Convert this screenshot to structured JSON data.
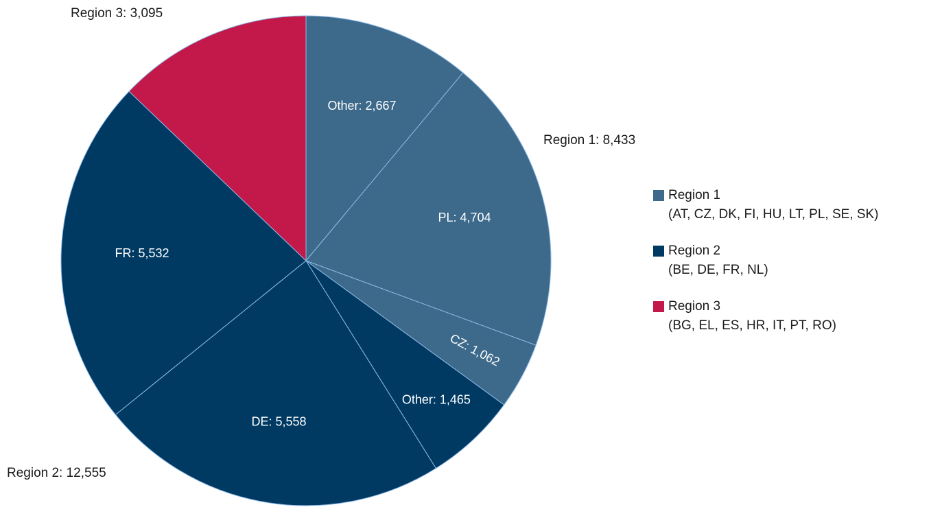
{
  "chart_data": {
    "type": "pie",
    "series": [
      {
        "name": "Region 1",
        "detail": "(AT, CZ, DK, FI, HU, LT, PL, SE, SK)",
        "color": "#3d6a8a",
        "label": "Region 1:  8,433",
        "total": 8433,
        "labels": [
          "Other: 2,667",
          "PL: 4,704",
          "CZ: 1,062"
        ],
        "values": [
          2667,
          4704,
          1062
        ]
      },
      {
        "name": "Region 2",
        "detail": "(BE, DE, FR, NL)",
        "color": "#003a63",
        "label": "Region 2: 12,555",
        "total": 12555,
        "labels": [
          "Other: 1,465",
          "DE: 5,558",
          "FR: 5,532"
        ],
        "values": [
          1465,
          5558,
          5532
        ]
      },
      {
        "name": "Region 3",
        "detail": "(BG, EL, ES, HR, IT, PT, RO)",
        "color": "#c2194a",
        "label": "Region 3:  3,095",
        "total": 3095,
        "labels": [
          null
        ],
        "values": [
          3095
        ]
      }
    ]
  }
}
